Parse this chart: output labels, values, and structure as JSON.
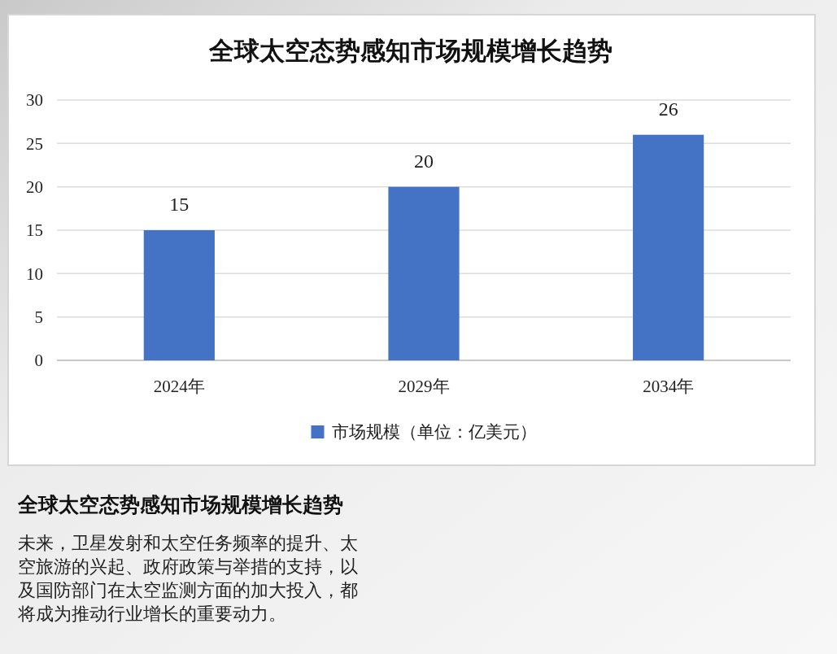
{
  "chart_data": {
    "type": "bar",
    "title": "全球太空态势感知市场规模增长趋势",
    "categories": [
      "2024年",
      "2029年",
      "2034年"
    ],
    "series": [
      {
        "name": "市场规模（单位：亿美元）",
        "color": "#4472c4",
        "values": [
          15,
          20,
          26
        ]
      }
    ],
    "ylim": [
      0,
      30
    ],
    "yticks": [
      0,
      5,
      10,
      15,
      20,
      25,
      30
    ],
    "grid": "y",
    "data_labels": true,
    "legend": "bottom",
    "annotations": [
      "全球太空态势感知市场规模增长趋势",
      "未来，卫星发射和太空任务频率的提升、太空旅游的兴起、政府政策与举措的支持，以及国防部门在太空监测方面的加大投入，都将成为推动行业增长的重要动力。"
    ]
  }
}
